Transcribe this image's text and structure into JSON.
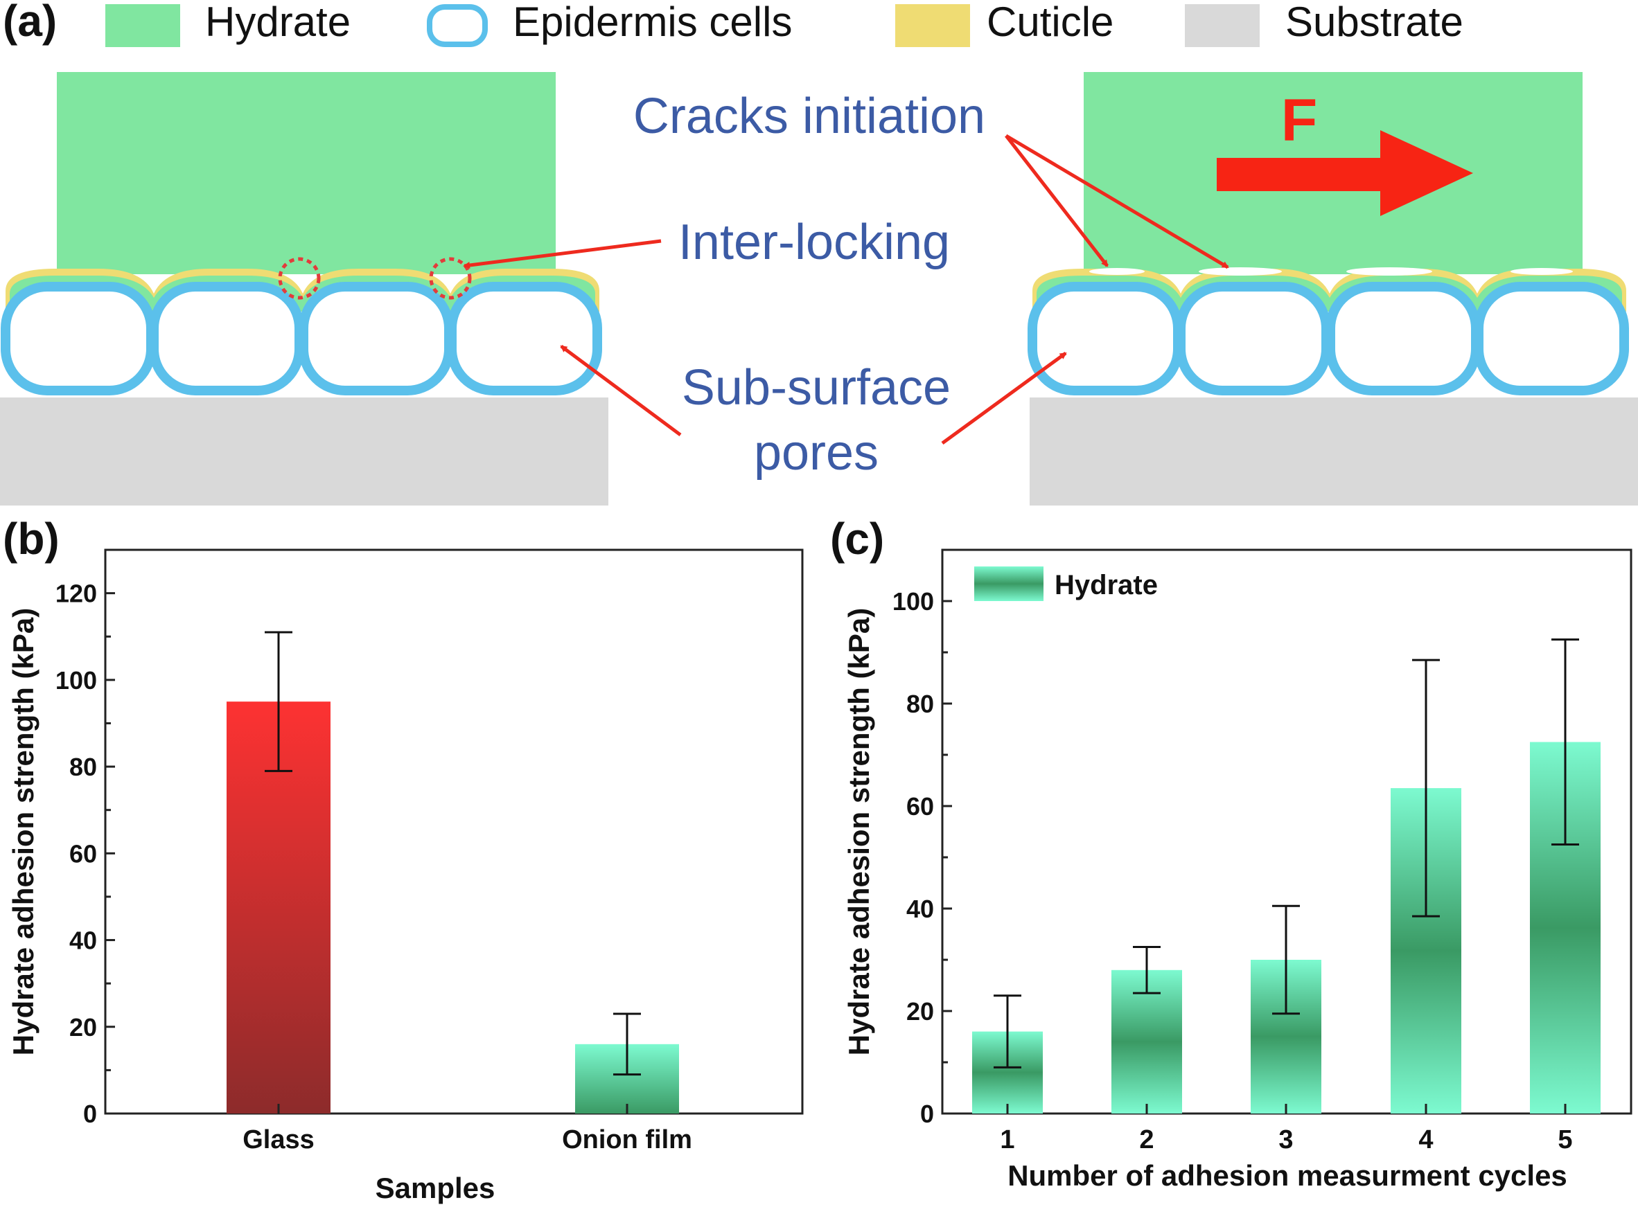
{
  "panel_a": {
    "label": "(a)",
    "legend": [
      {
        "label": "Hydrate",
        "color": "#80e6a0"
      },
      {
        "label": "Epidermis cells",
        "color": "#5bc0eb"
      },
      {
        "label": "Cuticle",
        "color": "#efdc73"
      },
      {
        "label": "Substrate",
        "color": "#d9d9d9"
      }
    ],
    "annotations": {
      "cracks": "Cracks initiation",
      "interlocking": "Inter-locking",
      "pores_line1": "Sub-surface",
      "pores_line2": "pores",
      "force": "F"
    },
    "colors": {
      "text": "#3c5ba5",
      "arrow": "#ee2a1e",
      "force": "#f72414"
    }
  },
  "chart_data": [
    {
      "panel": "(b)",
      "type": "bar",
      "categories": [
        "Glass",
        "Onion film"
      ],
      "values": [
        95,
        16
      ],
      "errors": [
        16,
        7
      ],
      "xlabel": "Samples",
      "ylabel": "Hydrate adhesion strength (kPa)",
      "ylim": [
        0,
        130
      ],
      "yticks": [
        0,
        20,
        40,
        60,
        80,
        100,
        120
      ],
      "bar_colors": [
        "#d83b3b",
        "#5fe0aa"
      ],
      "grid": false
    },
    {
      "panel": "(c)",
      "type": "bar",
      "categories": [
        "1",
        "2",
        "3",
        "4",
        "5"
      ],
      "values": [
        16,
        28,
        30,
        63.5,
        72.5
      ],
      "errors": [
        7,
        4.5,
        10.5,
        25,
        20
      ],
      "xlabel": "Number of adhesion measurment cycles",
      "ylabel": "Hydrate adhesion strength (kPa)",
      "ylim": [
        0,
        110
      ],
      "yticks": [
        0,
        20,
        40,
        60,
        80,
        100
      ],
      "legend": {
        "label": "Hydrate",
        "position": "top-left"
      },
      "bar_color": "#5fe0aa",
      "grid": false
    }
  ]
}
